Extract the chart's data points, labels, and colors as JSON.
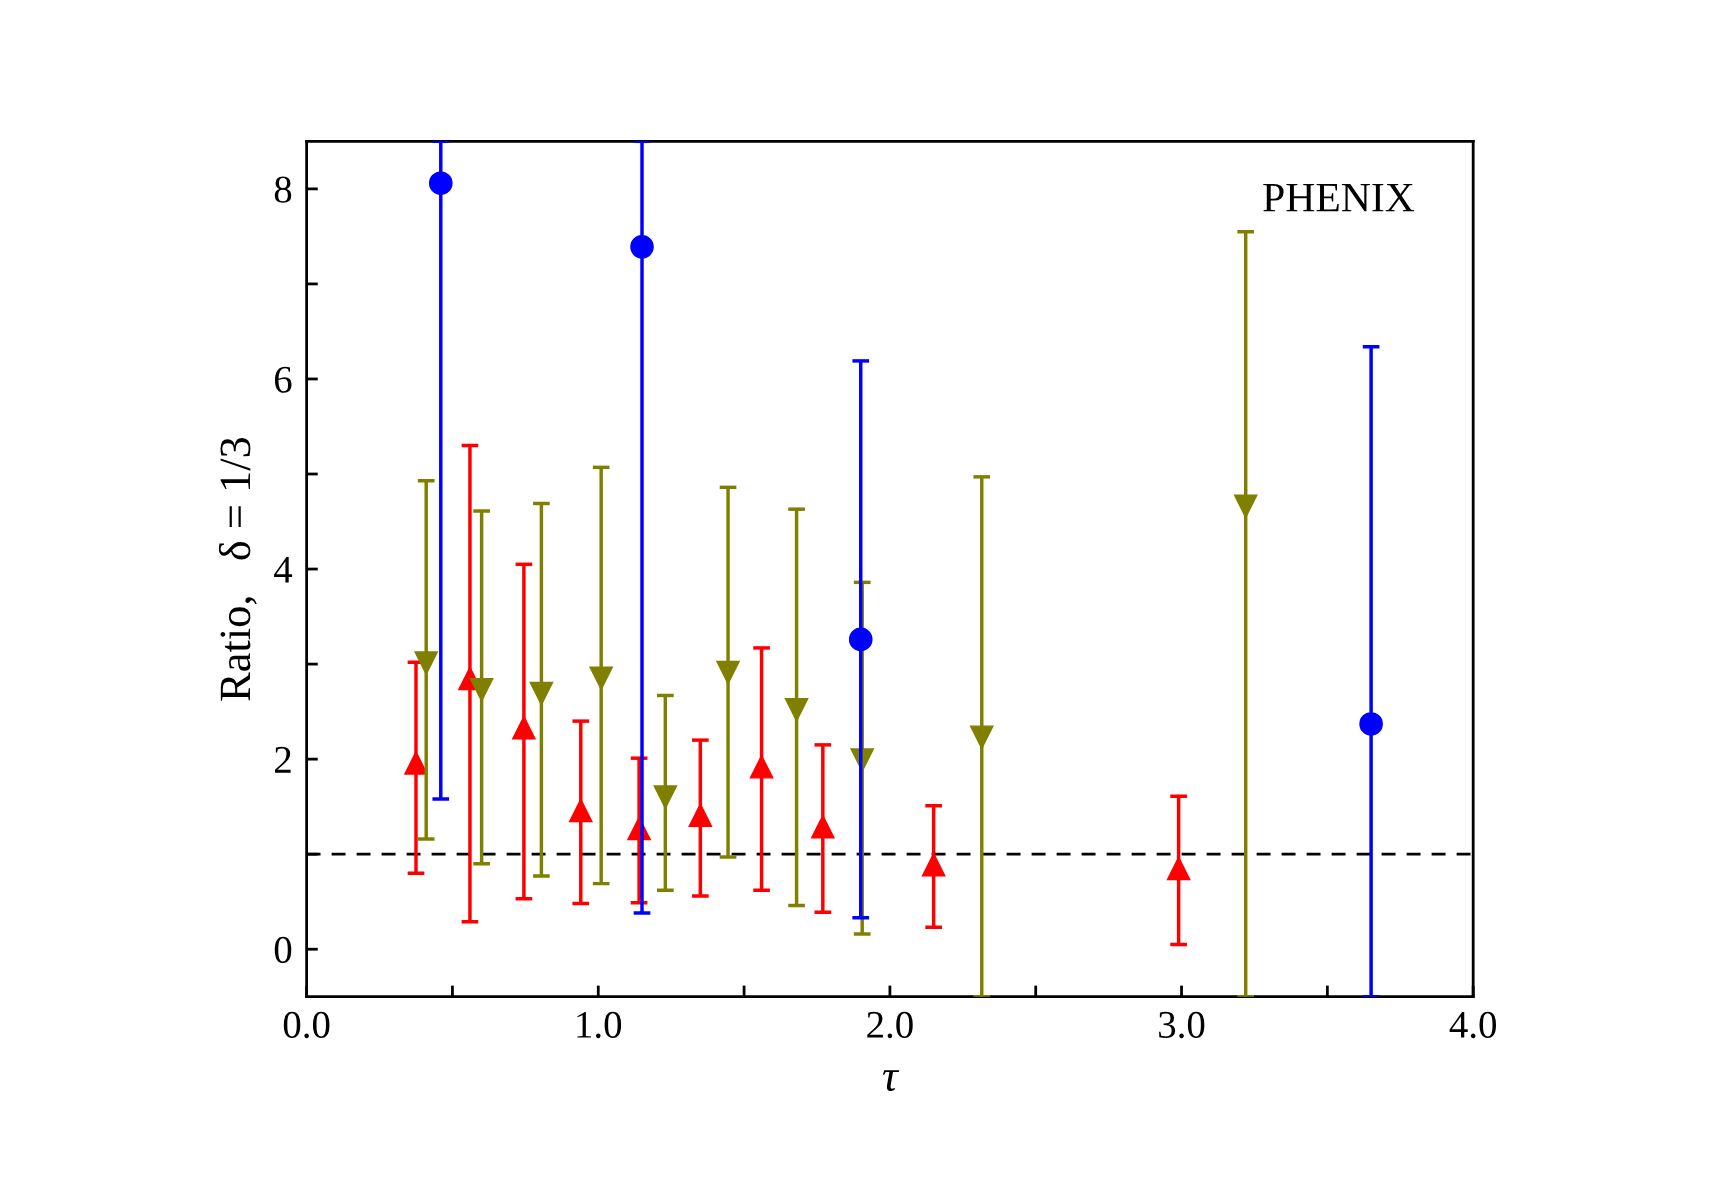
{
  "chart_data": {
    "type": "scatter",
    "xlabel": "τ",
    "ylabel": "Ratio,   δ = 1/3",
    "annotations": [
      "PHENIX"
    ],
    "xlim": [
      0,
      4
    ],
    "ylim": [
      -0.5,
      8.5
    ],
    "xticks": [
      {
        "value": 0,
        "label": "0.0"
      },
      {
        "value": 0.5,
        "label": null
      },
      {
        "value": 1,
        "label": "1.0"
      },
      {
        "value": 1.5,
        "label": null
      },
      {
        "value": 2,
        "label": "2.0"
      },
      {
        "value": 2.5,
        "label": null
      },
      {
        "value": 3,
        "label": "3.0"
      },
      {
        "value": 3.5,
        "label": null
      },
      {
        "value": 4,
        "label": "4.0"
      }
    ],
    "yticks": [
      0,
      {
        "value": 1,
        "label": null
      },
      2,
      {
        "value": 3,
        "label": null
      },
      4,
      {
        "value": 5,
        "label": null
      },
      6,
      {
        "value": 7,
        "label": null
      },
      8
    ],
    "grid": false,
    "ref_lines": [
      {
        "axis": "y",
        "value": 1,
        "color": "#000000",
        "line_style": "dashed"
      }
    ],
    "series": [
      {
        "color": "#ff0000",
        "marker": "triangle",
        "x": [
          0.375,
          0.56,
          0.745,
          0.94,
          1.14,
          1.35,
          1.56,
          1.77,
          2.15,
          2.99
        ],
        "values": [
          1.96,
          2.85,
          2.33,
          1.46,
          1.27,
          1.41,
          1.92,
          1.29,
          0.89,
          0.85
        ],
        "errors": [
          [
            0.8,
            3.02
          ],
          [
            0.29,
            5.3
          ],
          [
            0.53,
            4.05
          ],
          [
            0.48,
            2.4
          ],
          [
            0.49,
            2.01
          ],
          [
            0.56,
            2.2
          ],
          [
            0.62,
            3.17
          ],
          [
            0.39,
            2.15
          ],
          [
            0.23,
            1.51
          ],
          [
            0.05,
            1.61
          ]
        ]
      },
      {
        "color": "#808000",
        "marker": "triangle_down",
        "x": [
          0.41,
          0.6,
          0.805,
          1.01,
          1.23,
          1.445,
          1.68,
          1.905,
          2.315,
          3.22
        ],
        "values": [
          3.01,
          2.73,
          2.69,
          2.85,
          1.6,
          2.91,
          2.52,
          1.99,
          2.23,
          4.66
        ],
        "errors": [
          [
            1.16,
            4.93
          ],
          [
            0.9,
            4.61
          ],
          [
            0.77,
            4.69
          ],
          [
            0.69,
            5.07
          ],
          [
            0.62,
            2.67
          ],
          [
            0.97,
            4.86
          ],
          [
            0.46,
            4.63
          ],
          [
            0.16,
            3.86
          ],
          [
            -0.5,
            4.97
          ],
          [
            -0.5,
            7.55
          ]
        ]
      },
      {
        "color": "#0000ff",
        "marker": "circle",
        "x": [
          0.46,
          1.15,
          1.9,
          3.65
        ],
        "values": [
          8.06,
          7.39,
          3.26,
          2.37
        ],
        "errors": [
          [
            1.58,
            8.5
          ],
          [
            0.38,
            8.5
          ],
          [
            0.33,
            6.19
          ],
          [
            -0.5,
            6.34
          ]
        ]
      }
    ]
  }
}
